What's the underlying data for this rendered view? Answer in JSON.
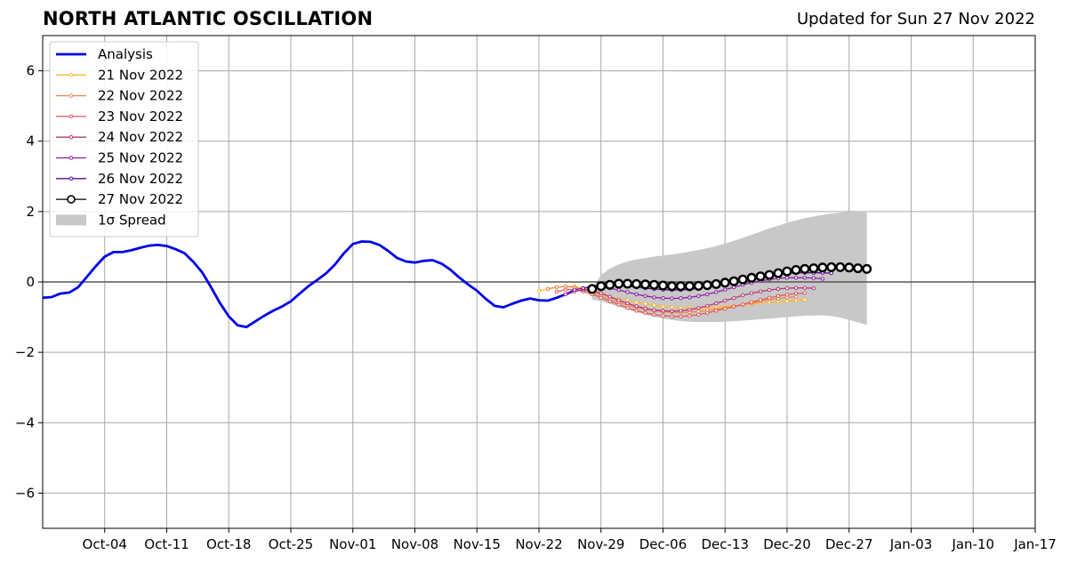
{
  "chart_data": {
    "type": "line",
    "title": "NORTH ATLANTIC OSCILLATION",
    "subtitle": "Updated for Sun 27 Nov 2022",
    "xlabel": "",
    "ylabel": "",
    "x_axis_type": "date",
    "xlim": [
      "2022-09-27",
      "2023-01-17"
    ],
    "ylim": [
      -7,
      7
    ],
    "x_ticks": [
      {
        "date": "2022-10-04",
        "label": "Oct-04"
      },
      {
        "date": "2022-10-11",
        "label": "Oct-11"
      },
      {
        "date": "2022-10-18",
        "label": "Oct-18"
      },
      {
        "date": "2022-10-25",
        "label": "Oct-25"
      },
      {
        "date": "2022-11-01",
        "label": "Nov-01"
      },
      {
        "date": "2022-11-08",
        "label": "Nov-08"
      },
      {
        "date": "2022-11-15",
        "label": "Nov-15"
      },
      {
        "date": "2022-11-22",
        "label": "Nov-22"
      },
      {
        "date": "2022-11-29",
        "label": "Nov-29"
      },
      {
        "date": "2022-12-06",
        "label": "Dec-06"
      },
      {
        "date": "2022-12-13",
        "label": "Dec-13"
      },
      {
        "date": "2022-12-20",
        "label": "Dec-20"
      },
      {
        "date": "2022-12-27",
        "label": "Dec-27"
      },
      {
        "date": "2023-01-03",
        "label": "Jan-03"
      },
      {
        "date": "2023-01-10",
        "label": "Jan-10"
      },
      {
        "date": "2023-01-17",
        "label": "Jan-17"
      }
    ],
    "y_ticks": [
      {
        "value": 6,
        "label": "6"
      },
      {
        "value": 4,
        "label": "4"
      },
      {
        "value": 2,
        "label": "2"
      },
      {
        "value": 0,
        "label": "0"
      },
      {
        "value": -2,
        "label": "−2"
      },
      {
        "value": -4,
        "label": "−4"
      },
      {
        "value": -6,
        "label": "−6"
      }
    ],
    "grid": true,
    "legend_position": "top-left",
    "analysis": {
      "name": "Analysis",
      "color": "#0000e6",
      "start": "2022-09-27",
      "values": [
        -0.45,
        -0.43,
        -0.33,
        -0.3,
        -0.15,
        0.15,
        0.45,
        0.72,
        0.85,
        0.85,
        0.9,
        0.97,
        1.03,
        1.05,
        1.02,
        0.93,
        0.82,
        0.57,
        0.27,
        -0.15,
        -0.6,
        -0.98,
        -1.23,
        -1.28,
        -1.12,
        -0.96,
        -0.82,
        -0.7,
        -0.55,
        -0.33,
        -0.12,
        0.06,
        0.25,
        0.5,
        0.82,
        1.08,
        1.15,
        1.14,
        1.05,
        0.88,
        0.68,
        0.58,
        0.55,
        0.6,
        0.62,
        0.52,
        0.35,
        0.13,
        -0.07,
        -0.25,
        -0.48,
        -0.68,
        -0.72,
        -0.62,
        -0.53,
        -0.47,
        -0.52,
        -0.53,
        -0.45,
        -0.35,
        -0.25
      ]
    },
    "forecasts": [
      {
        "name": "21 Nov 2022",
        "color": "#fbb833",
        "start": "2022-11-22",
        "values": [
          -0.25,
          -0.2,
          -0.15,
          -0.13,
          -0.13,
          -0.18,
          -0.28,
          -0.35,
          -0.42,
          -0.48,
          -0.52,
          -0.58,
          -0.62,
          -0.66,
          -0.7,
          -0.72,
          -0.74,
          -0.74,
          -0.75,
          -0.74,
          -0.72,
          -0.7,
          -0.68,
          -0.65,
          -0.62,
          -0.6,
          -0.58,
          -0.56,
          -0.55,
          -0.53,
          -0.5
        ]
      },
      {
        "name": "22 Nov 2022",
        "color": "#f2844b",
        "start": "2022-11-23",
        "values": [
          -0.2,
          -0.15,
          -0.13,
          -0.15,
          -0.22,
          -0.3,
          -0.4,
          -0.5,
          -0.58,
          -0.66,
          -0.73,
          -0.78,
          -0.82,
          -0.85,
          -0.86,
          -0.87,
          -0.86,
          -0.84,
          -0.81,
          -0.78,
          -0.74,
          -0.7,
          -0.65,
          -0.6,
          -0.55,
          -0.5,
          -0.47,
          -0.44,
          -0.42
        ]
      },
      {
        "name": "23 Nov 2022",
        "color": "#e05c5c",
        "start": "2022-11-24",
        "values": [
          -0.28,
          -0.22,
          -0.22,
          -0.27,
          -0.35,
          -0.45,
          -0.55,
          -0.65,
          -0.74,
          -0.82,
          -0.88,
          -0.93,
          -0.96,
          -0.98,
          -0.98,
          -0.96,
          -0.93,
          -0.88,
          -0.82,
          -0.76,
          -0.7,
          -0.64,
          -0.57,
          -0.51,
          -0.45,
          -0.4,
          -0.36,
          -0.33,
          -0.31
        ]
      },
      {
        "name": "24 Nov 2022",
        "color": "#b83779",
        "start": "2022-11-25",
        "values": [
          -0.35,
          -0.27,
          -0.22,
          -0.25,
          -0.32,
          -0.42,
          -0.52,
          -0.61,
          -0.69,
          -0.75,
          -0.8,
          -0.82,
          -0.83,
          -0.82,
          -0.79,
          -0.74,
          -0.68,
          -0.61,
          -0.53,
          -0.46,
          -0.38,
          -0.32,
          -0.27,
          -0.23,
          -0.2,
          -0.18,
          -0.17,
          -0.17,
          -0.18
        ]
      },
      {
        "name": "25 Nov 2022",
        "color": "#8d1fa4",
        "start": "2022-11-26",
        "values": [
          -0.22,
          -0.18,
          -0.15,
          -0.15,
          -0.18,
          -0.23,
          -0.29,
          -0.35,
          -0.4,
          -0.44,
          -0.46,
          -0.47,
          -0.46,
          -0.44,
          -0.4,
          -0.35,
          -0.29,
          -0.22,
          -0.15,
          -0.08,
          -0.02,
          0.03,
          0.07,
          0.1,
          0.12,
          0.12,
          0.12,
          0.11,
          0.09
        ]
      },
      {
        "name": "26 Nov 2022",
        "color": "#5c0f8b",
        "start": "2022-11-27",
        "values": [
          -0.18,
          -0.12,
          -0.1,
          -0.09,
          -0.1,
          -0.12,
          -0.15,
          -0.18,
          -0.2,
          -0.22,
          -0.23,
          -0.23,
          -0.21,
          -0.18,
          -0.13,
          -0.08,
          -0.03,
          0.03,
          0.08,
          0.13,
          0.17,
          0.2,
          0.22,
          0.24,
          0.26,
          0.26,
          0.26,
          0.26,
          0.25
        ]
      },
      {
        "name": "27 Nov 2022",
        "color": "#000000",
        "start": "2022-11-28",
        "values": [
          -0.2,
          -0.12,
          -0.08,
          -0.05,
          -0.05,
          -0.06,
          -0.07,
          -0.08,
          -0.1,
          -0.12,
          -0.12,
          -0.12,
          -0.11,
          -0.09,
          -0.06,
          -0.02,
          0.02,
          0.07,
          0.12,
          0.16,
          0.2,
          0.25,
          0.3,
          0.34,
          0.37,
          0.39,
          0.41,
          0.42,
          0.42,
          0.41,
          0.39,
          0.37
        ]
      }
    ],
    "spread": {
      "name": "1σ Spread",
      "color": "#c8c8c8",
      "start": "2022-11-28",
      "upper": [
        -0.2,
        0.2,
        0.38,
        0.5,
        0.58,
        0.64,
        0.68,
        0.72,
        0.75,
        0.78,
        0.82,
        0.86,
        0.91,
        0.96,
        1.02,
        1.09,
        1.17,
        1.25,
        1.34,
        1.43,
        1.52,
        1.6,
        1.68,
        1.75,
        1.81,
        1.86,
        1.9,
        1.94,
        1.97,
        1.99,
        2.0,
        2.0
      ],
      "lower": [
        -0.5,
        -0.55,
        -0.62,
        -0.7,
        -0.78,
        -0.86,
        -0.93,
        -0.99,
        -1.04,
        -1.08,
        -1.11,
        -1.13,
        -1.14,
        -1.14,
        -1.14,
        -1.13,
        -1.12,
        -1.1,
        -1.08,
        -1.06,
        -1.04,
        -1.02,
        -1.0,
        -0.98,
        -0.96,
        -0.95,
        -0.95,
        -0.97,
        -1.01,
        -1.08,
        -1.15,
        -1.22
      ]
    },
    "legend": [
      "Analysis",
      "21 Nov 2022",
      "22 Nov 2022",
      "23 Nov 2022",
      "24 Nov 2022",
      "25 Nov 2022",
      "26 Nov 2022",
      "27 Nov 2022",
      "1σ Spread"
    ]
  }
}
